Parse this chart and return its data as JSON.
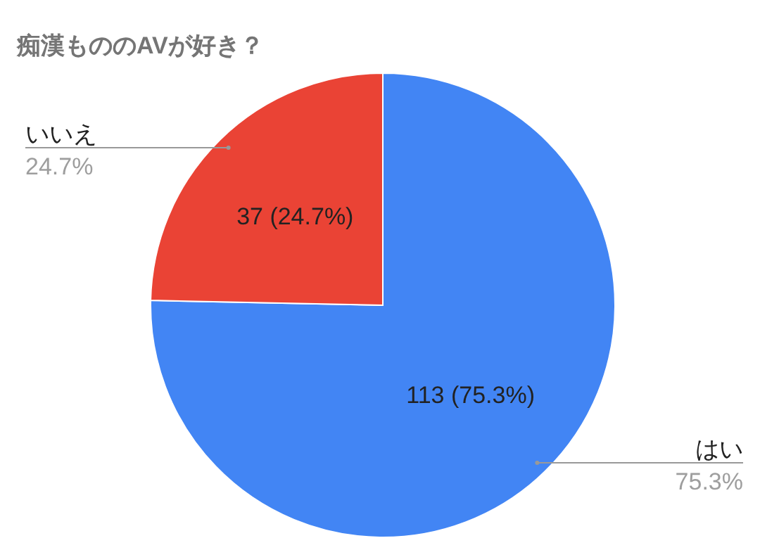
{
  "chart_data": {
    "type": "pie",
    "title": "痴漢もののAVが好き？",
    "categories": [
      "はい",
      "いいえ"
    ],
    "values": [
      113,
      37
    ],
    "colors": [
      "#4285f4",
      "#ea4335"
    ],
    "value_labels": [
      "113 (75.3%)",
      "37 (24.7%)"
    ],
    "annotations": [
      "75.3%",
      "24.7%"
    ]
  }
}
